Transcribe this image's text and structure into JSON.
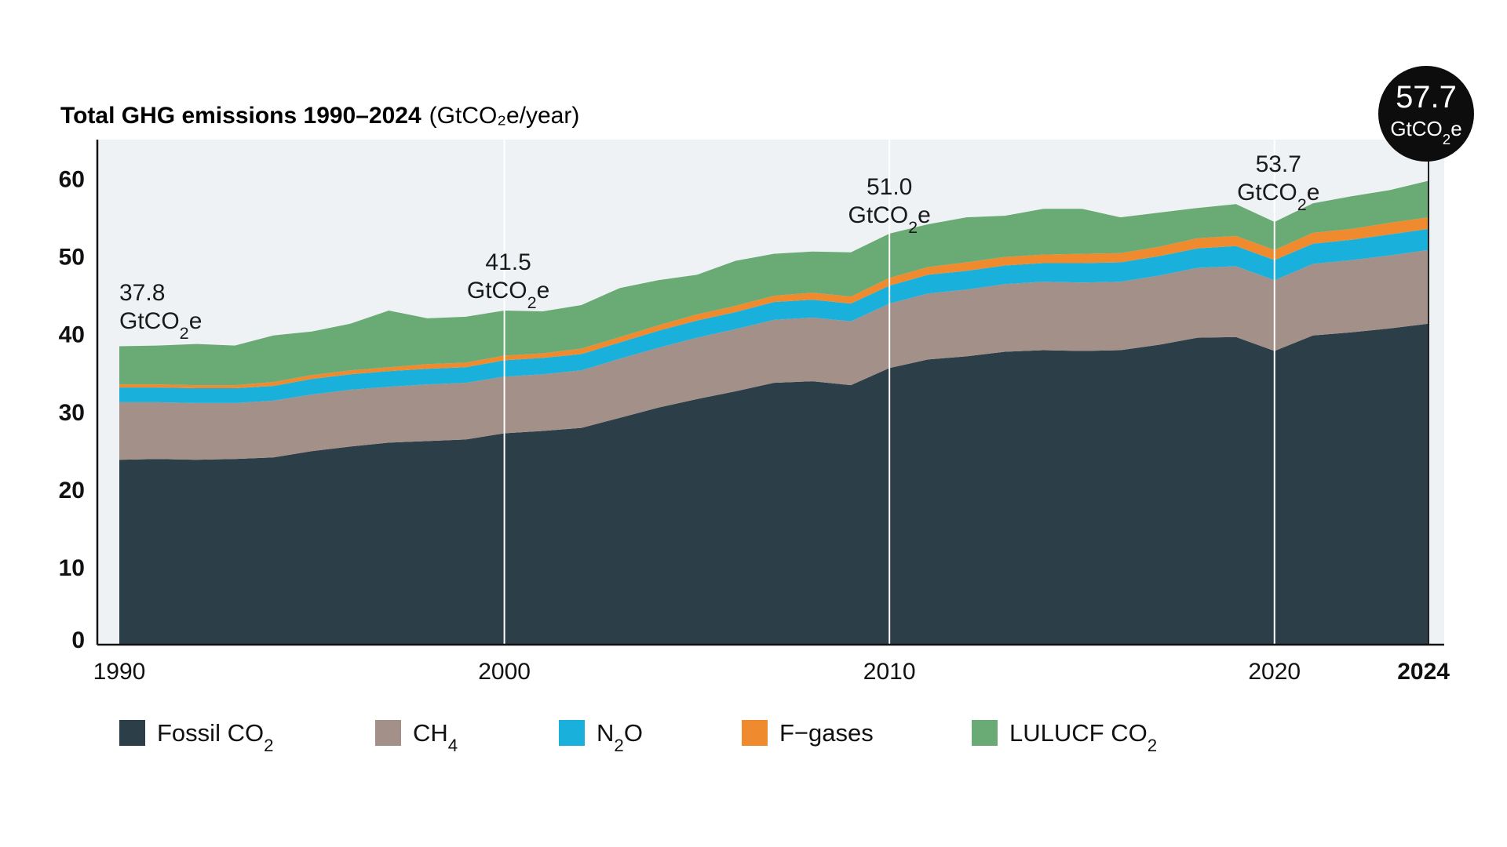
{
  "chart_data": {
    "type": "area",
    "stacked": true,
    "title": "Total GHG emissions 1990–2024",
    "title_unit": "(GtCO₂e/year)",
    "xlabel": "",
    "ylabel": "",
    "xlim": [
      1990,
      2024
    ],
    "ylim": [
      0,
      65
    ],
    "y_ticks": [
      "0",
      "10",
      "20",
      "30",
      "40",
      "50",
      "60"
    ],
    "x_ticks": [
      "1990",
      "2000",
      "2010",
      "2020",
      "2024"
    ],
    "x": [
      1990,
      1991,
      1992,
      1993,
      1994,
      1995,
      1996,
      1997,
      1998,
      1999,
      2000,
      2001,
      2002,
      2003,
      2004,
      2005,
      2006,
      2007,
      2008,
      2009,
      2010,
      2011,
      2012,
      2013,
      2014,
      2015,
      2016,
      2017,
      2018,
      2019,
      2020,
      2021,
      2022,
      2023,
      2024
    ],
    "series": [
      {
        "name": "Fossil CO₂",
        "color": "#2c3e48",
        "values": [
          23.8,
          23.9,
          23.8,
          23.9,
          24.1,
          24.9,
          25.5,
          26.0,
          26.2,
          26.4,
          27.2,
          27.5,
          27.9,
          29.2,
          30.5,
          31.6,
          32.6,
          33.7,
          33.9,
          33.4,
          35.6,
          36.7,
          37.1,
          37.7,
          37.9,
          37.8,
          37.9,
          38.6,
          39.5,
          39.6,
          37.8,
          39.8,
          40.2,
          40.7,
          41.3
        ]
      },
      {
        "name": "CH₄",
        "color": "#a39088",
        "values": [
          7.4,
          7.3,
          7.3,
          7.2,
          7.3,
          7.3,
          7.3,
          7.2,
          7.3,
          7.3,
          7.3,
          7.3,
          7.4,
          7.6,
          7.7,
          7.9,
          8.0,
          8.1,
          8.2,
          8.2,
          8.3,
          8.5,
          8.6,
          8.7,
          8.8,
          8.8,
          8.8,
          8.9,
          9.0,
          9.1,
          9.1,
          9.2,
          9.3,
          9.4,
          9.5
        ]
      },
      {
        "name": "N₂O",
        "color": "#1ab0dc",
        "values": [
          1.9,
          1.9,
          1.9,
          1.9,
          1.9,
          2.0,
          2.0,
          2.0,
          2.0,
          2.0,
          2.1,
          2.1,
          2.1,
          2.1,
          2.2,
          2.2,
          2.2,
          2.3,
          2.3,
          2.3,
          2.3,
          2.4,
          2.4,
          2.4,
          2.4,
          2.5,
          2.5,
          2.5,
          2.5,
          2.6,
          2.6,
          2.6,
          2.6,
          2.7,
          2.7
        ]
      },
      {
        "name": "F−gases",
        "color": "#f08a2e",
        "values": [
          0.4,
          0.4,
          0.4,
          0.4,
          0.5,
          0.5,
          0.5,
          0.5,
          0.6,
          0.6,
          0.6,
          0.6,
          0.7,
          0.7,
          0.7,
          0.8,
          0.8,
          0.8,
          0.9,
          0.9,
          1.0,
          1.0,
          1.1,
          1.1,
          1.1,
          1.2,
          1.2,
          1.2,
          1.3,
          1.3,
          1.3,
          1.4,
          1.4,
          1.5,
          1.5
        ]
      },
      {
        "name": "LULUCF CO₂",
        "color": "#6aaa74",
        "values": [
          4.9,
          5.0,
          5.3,
          5.1,
          6.0,
          5.6,
          6.0,
          7.3,
          5.9,
          5.9,
          5.8,
          5.4,
          5.6,
          6.3,
          5.8,
          5.1,
          5.8,
          5.4,
          5.3,
          5.7,
          5.7,
          5.5,
          5.8,
          5.3,
          5.9,
          5.8,
          4.6,
          4.4,
          3.9,
          4.1,
          3.6,
          3.8,
          4.2,
          4.2,
          4.7
        ]
      }
    ],
    "annotations": [
      {
        "year": 1990,
        "value": "37.8",
        "unit": "GtCO₂e"
      },
      {
        "year": 2000,
        "value": "41.5",
        "unit": "GtCO₂e"
      },
      {
        "year": 2010,
        "value": "51.0",
        "unit": "GtCO₂e"
      },
      {
        "year": 2020,
        "value": "53.7",
        "unit": "GtCO₂e"
      },
      {
        "year": 2024,
        "value": "57.7",
        "unit": "GtCO₂e"
      }
    ],
    "legend_position": "bottom"
  }
}
